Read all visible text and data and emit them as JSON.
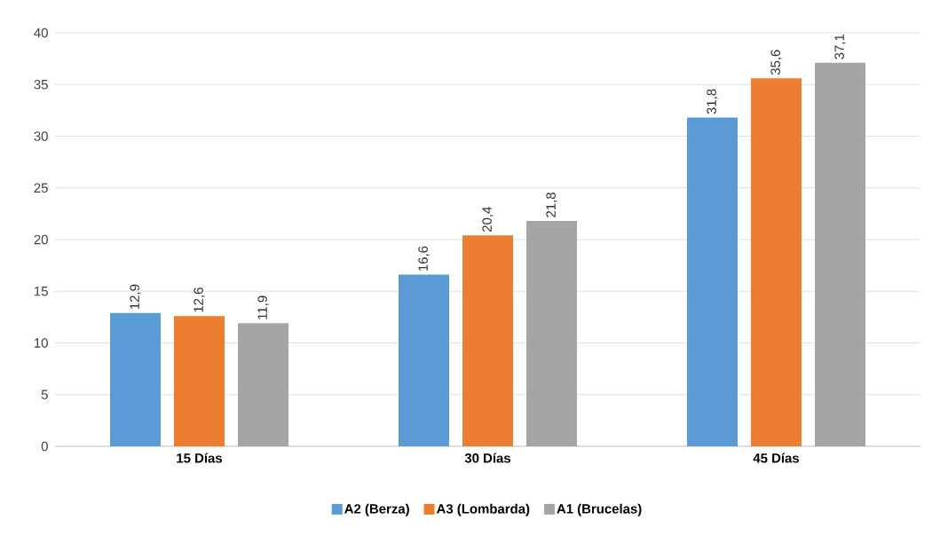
{
  "chart_data": {
    "type": "bar",
    "categories": [
      "15 Días",
      "30 Días",
      "45 Días"
    ],
    "series": [
      {
        "name": "A2 (Berza)",
        "color": "#5b9bd5",
        "values": [
          12.9,
          16.6,
          31.8
        ],
        "value_labels": [
          "12,9",
          "16,6",
          "31,8"
        ]
      },
      {
        "name": "A3 (Lombarda)",
        "color": "#ed7d31",
        "values": [
          12.6,
          20.4,
          35.6
        ],
        "value_labels": [
          "12,6",
          "20,4",
          "35,6"
        ]
      },
      {
        "name": "A1 (Brucelas)",
        "color": "#a5a5a5",
        "values": [
          11.9,
          21.8,
          37.1
        ],
        "value_labels": [
          "11,9",
          "21,8",
          "37,1"
        ]
      }
    ],
    "ylim": [
      0,
      40
    ],
    "yticks": [
      0,
      5,
      10,
      15,
      20,
      25,
      30,
      35,
      40
    ],
    "grid": "y",
    "legend": "bottom"
  }
}
